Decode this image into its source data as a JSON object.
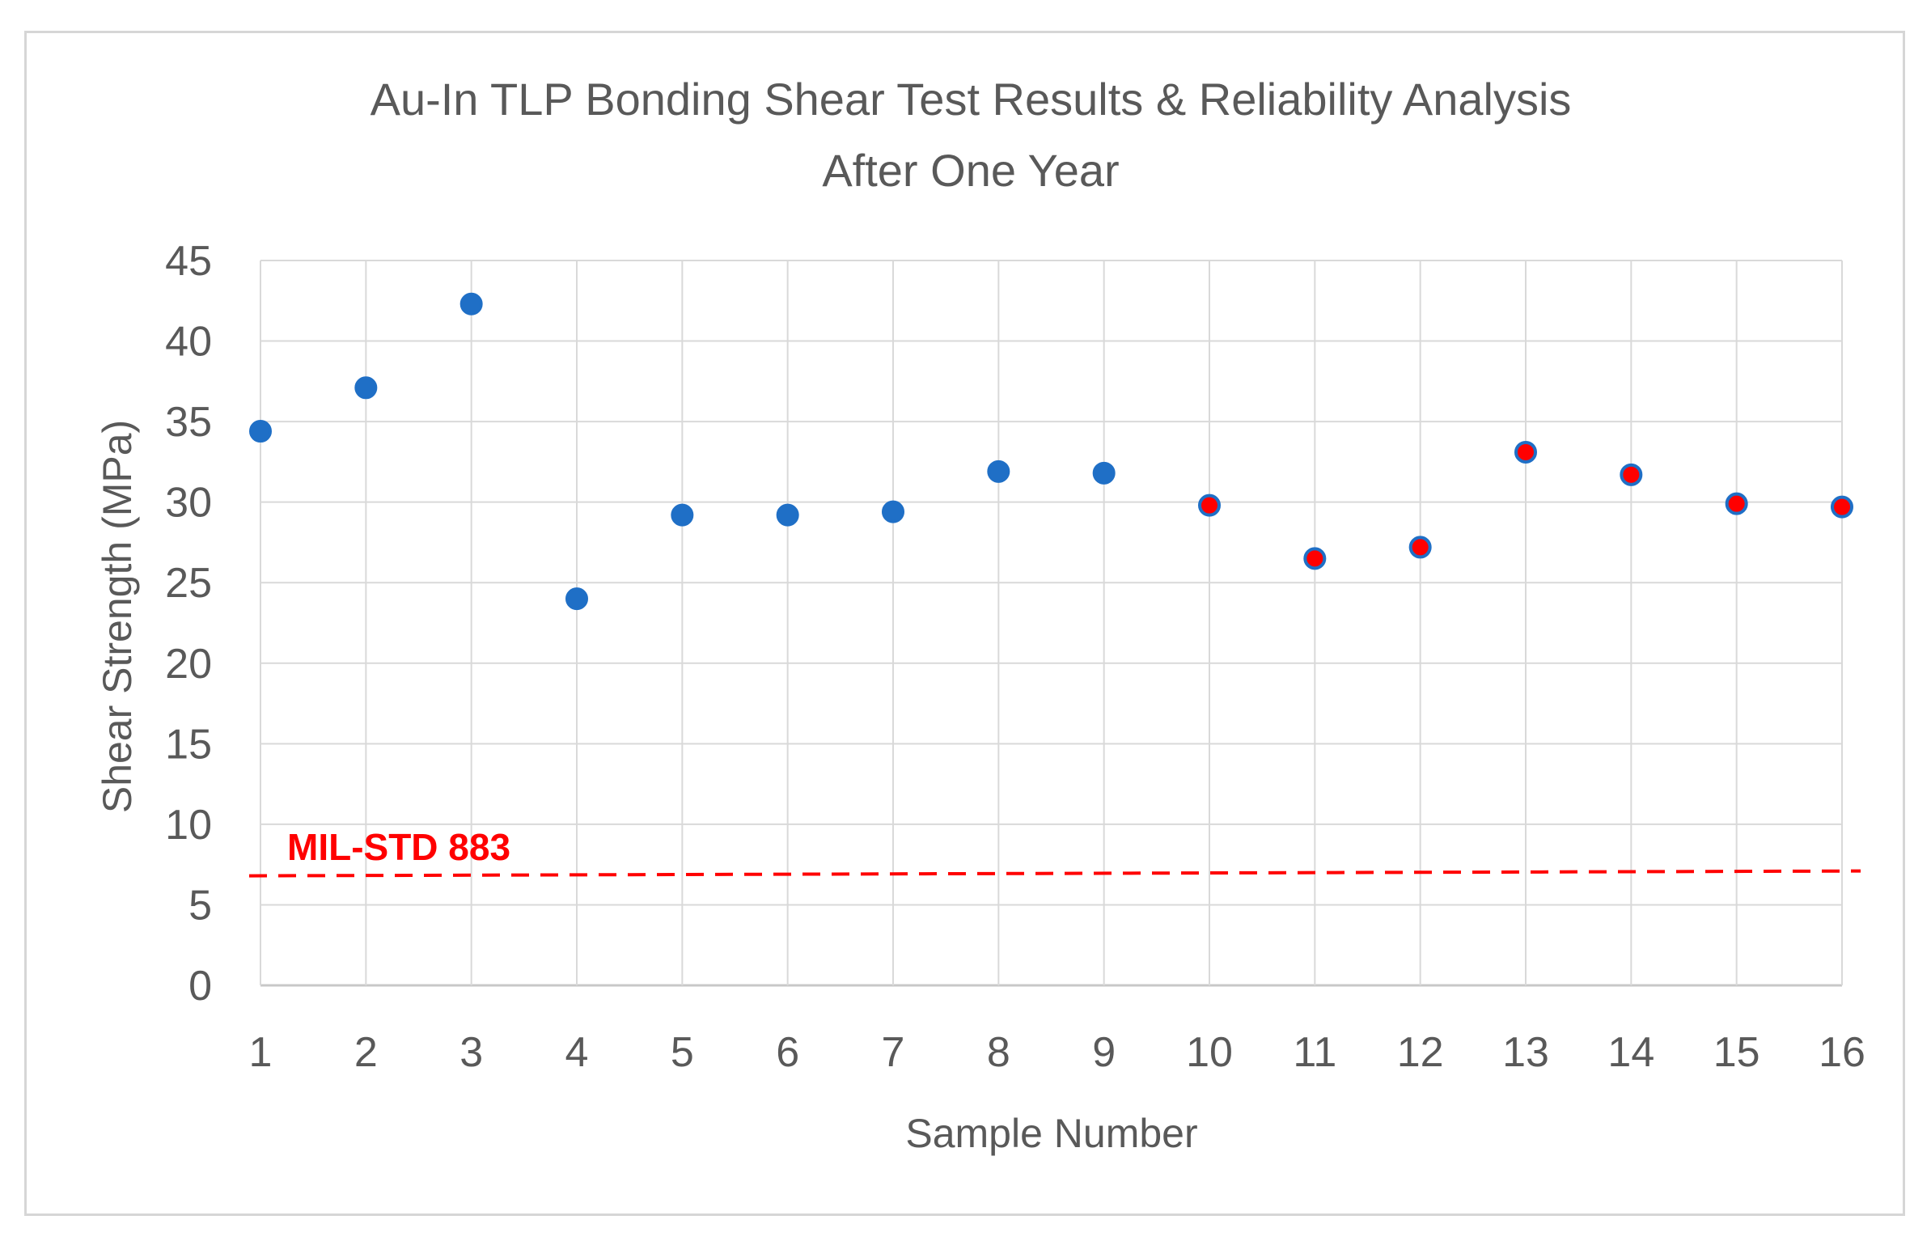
{
  "chart_data": {
    "type": "scatter",
    "title": "Au-In TLP Bonding Shear Test Results & Reliability Analysis",
    "subtitle": "After One Year",
    "xlabel": "Sample Number",
    "ylabel": "Shear Strength (MPa)",
    "ylim": [
      0,
      45
    ],
    "yticks": [
      "0",
      "5",
      "10",
      "15",
      "20",
      "25",
      "30",
      "35",
      "40",
      "45"
    ],
    "ytick_values": [
      0,
      5,
      10,
      15,
      20,
      25,
      30,
      35,
      40,
      45
    ],
    "categories": [
      "1",
      "2",
      "3",
      "4",
      "5",
      "6",
      "7",
      "8",
      "9",
      "10",
      "11",
      "12",
      "13",
      "14",
      "15",
      "16"
    ],
    "values": [
      34.4,
      37.1,
      42.3,
      24.0,
      29.2,
      29.2,
      29.4,
      31.9,
      31.8,
      29.8,
      26.5,
      27.2,
      33.1,
      31.7,
      29.9,
      29.7
    ],
    "point_colors": [
      "#1f6fc6",
      "#1f6fc6",
      "#1f6fc6",
      "#1f6fc6",
      "#1f6fc6",
      "#1f6fc6",
      "#1f6fc6",
      "#1f6fc6",
      "#1f6fc6",
      "#ff0000",
      "#ff0000",
      "#ff0000",
      "#ff0000",
      "#ff0000",
      "#ff0000",
      "#ff0000"
    ],
    "point_outline": "#1f6fc6",
    "grid": true,
    "reference_line": {
      "label": "MIL-STD 883",
      "y_start": 6.8,
      "y_end": 7.1,
      "color": "#ff0000",
      "style": "dashed"
    }
  }
}
